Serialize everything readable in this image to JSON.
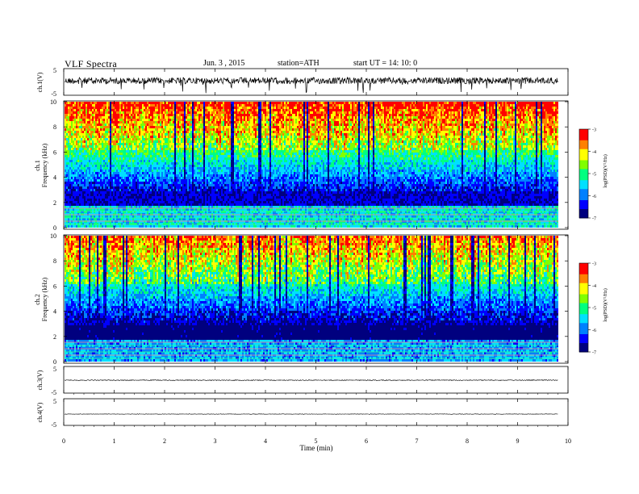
{
  "header": {
    "title": "VLF  Spectra",
    "date": "Jun. 3  , 2015",
    "station": "station=ATH",
    "start": "start  UT  =    14: 10: 0"
  },
  "chart_data": [
    {
      "type": "line",
      "panel": "ch1-waveform",
      "ylabel": "ch.1(V)",
      "ylim": [
        -5,
        5
      ],
      "yticks": [
        "5",
        "-5"
      ],
      "xlim": [
        0,
        10
      ],
      "series": [
        {
          "values_desc": "noisy waveform around +1.5 V with spikes to -5 V"
        }
      ]
    },
    {
      "type": "heatmap",
      "panel": "ch1-spectrogram",
      "ylabel_top": "ch.1",
      "ylabel": "Frequency  (kHz)",
      "ylim": [
        0,
        10
      ],
      "yticks": [
        "0",
        "2",
        "4",
        "6",
        "8",
        "10"
      ],
      "xlim": [
        0,
        9.8
      ],
      "colorbar": {
        "label": "log(PSD)(V²/Hz)",
        "range": [
          -7,
          -3
        ],
        "ticks": [
          "-3",
          "-4",
          "-5",
          "-6",
          "-7"
        ]
      }
    },
    {
      "type": "heatmap",
      "panel": "ch2-spectrogram",
      "ylabel_top": "ch.2",
      "ylabel": "Frequency  (kHz)",
      "ylim": [
        0,
        10
      ],
      "yticks": [
        "0",
        "2",
        "4",
        "6",
        "8",
        "10"
      ],
      "xlim": [
        0,
        9.8
      ],
      "colorbar": {
        "label": "log(PSD)(V²/Hz)",
        "range": [
          -7,
          -3
        ],
        "ticks": [
          "-3",
          "-4",
          "-5",
          "-6",
          "-7"
        ]
      }
    },
    {
      "type": "line",
      "panel": "ch3-waveform",
      "ylabel": "ch.3(V)",
      "ylim": [
        -5,
        5
      ],
      "yticks": [
        "5",
        "-5"
      ],
      "series": [
        {
          "values_desc": "flat near 0 V"
        }
      ]
    },
    {
      "type": "line",
      "panel": "ch4-waveform",
      "ylabel": "ch.4(V)",
      "ylim": [
        -5,
        5
      ],
      "yticks": [
        "5",
        "-5"
      ],
      "series": [
        {
          "values_desc": "flat near 0 V"
        }
      ]
    }
  ],
  "xaxis": {
    "label": "Time  (min)",
    "ticks": [
      "0",
      "1",
      "2",
      "3",
      "4",
      "5",
      "6",
      "7",
      "8",
      "9",
      "10"
    ]
  },
  "colors": {
    "colormap": [
      "#00007f",
      "#0000ff",
      "#0080ff",
      "#00e0ff",
      "#00ff80",
      "#80ff00",
      "#ffff00",
      "#ff8000",
      "#ff0000",
      "#ffffff"
    ]
  }
}
